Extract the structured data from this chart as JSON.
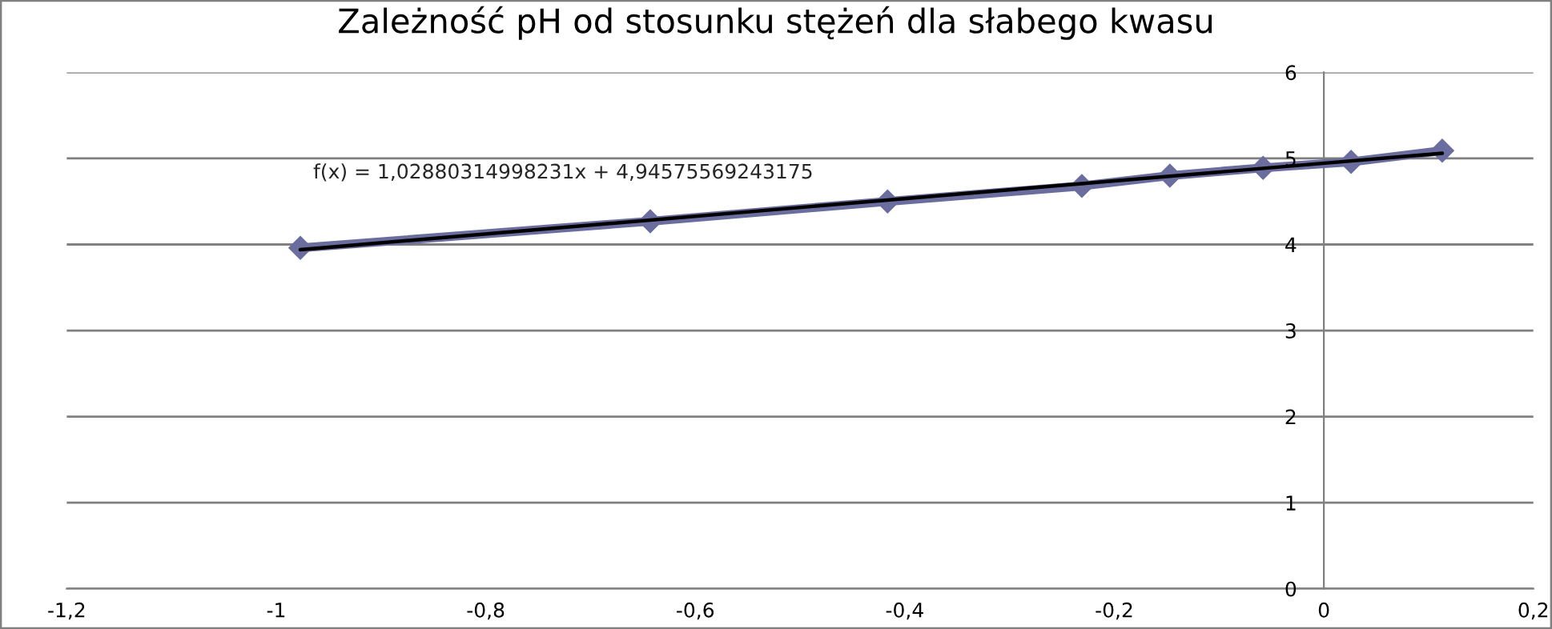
{
  "chart_data": {
    "type": "line",
    "title": "Zależność pH od stosunku stężeń dla słabego kwasu",
    "series": [
      {
        "color": "#6a6d9e",
        "marker": "diamond",
        "x": [
          -0.977,
          -0.643,
          -0.4165,
          -0.231,
          -0.147,
          -0.058,
          0.026,
          0.113
        ],
        "values": [
          3.96,
          4.27,
          4.5,
          4.68,
          4.8,
          4.89,
          4.96,
          5.09
        ]
      },
      {
        "color": "#000000",
        "marker": "none",
        "x": [
          -0.977,
          0.113
        ],
        "values": [
          3.94,
          5.06
        ]
      }
    ],
    "annotations": [
      "f(x) = 1,02880314998231x + 4,94575569243175"
    ],
    "xlim": [
      -1.2,
      0.2
    ],
    "xticks": [
      {
        "value": -1.2,
        "label": "-1,2"
      },
      {
        "value": -1,
        "label": "-1"
      },
      {
        "value": -0.8,
        "label": "-0,8"
      },
      {
        "value": -0.6,
        "label": "-0,6"
      },
      {
        "value": -0.4,
        "label": "-0,4"
      },
      {
        "value": -0.2,
        "label": "-0,2"
      },
      {
        "value": 0,
        "label": "0"
      },
      {
        "value": 0.2,
        "label": "0,2"
      }
    ],
    "ylim": [
      0,
      6
    ],
    "yticks": [
      0,
      1,
      2,
      3,
      4,
      5,
      6
    ],
    "grid": "y",
    "legend": false
  }
}
